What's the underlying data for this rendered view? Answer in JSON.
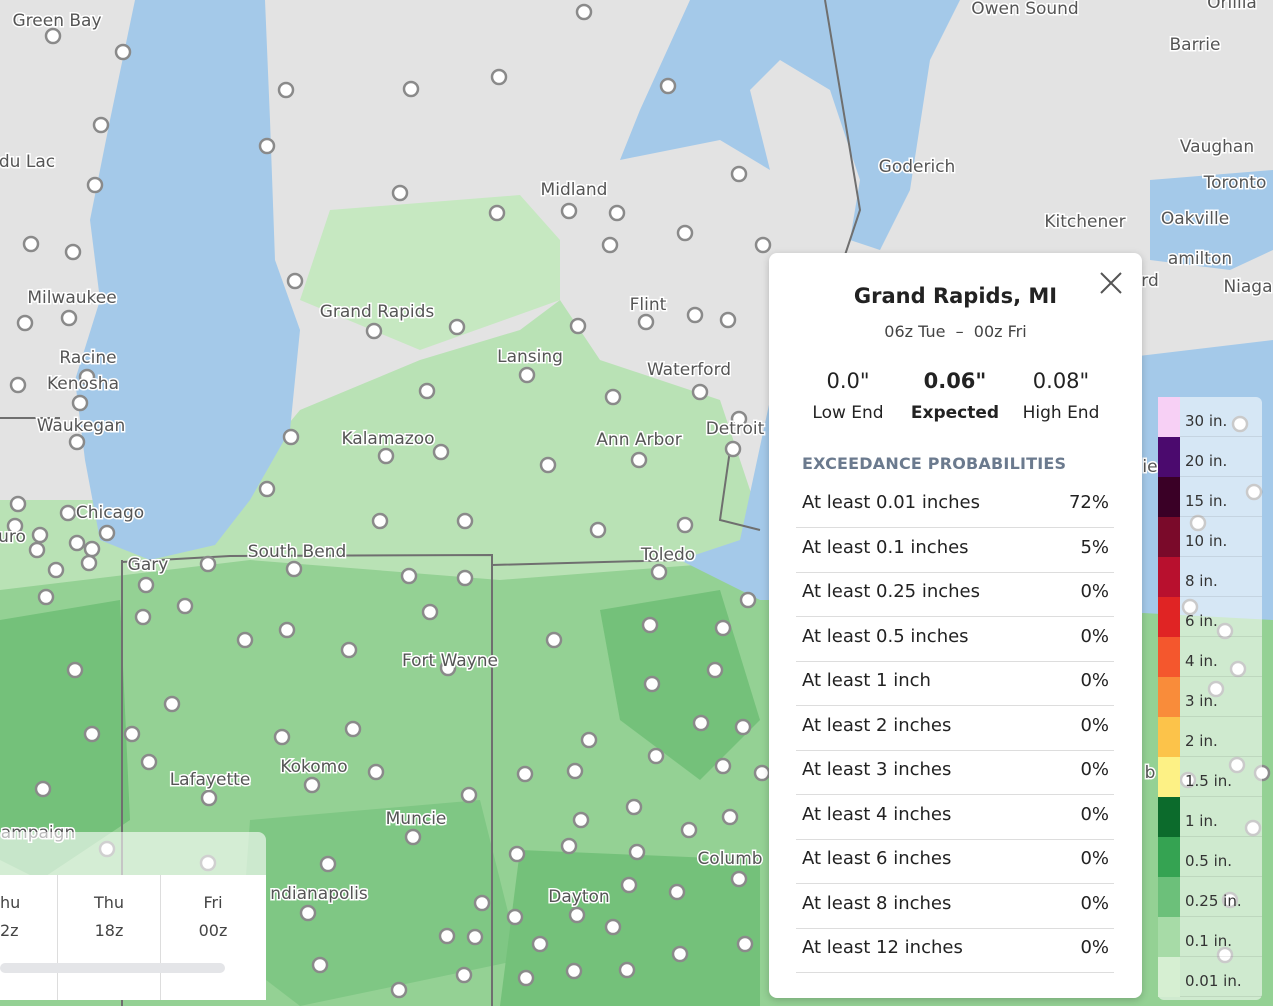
{
  "map": {
    "city_labels": [
      "Green Bay",
      "Owen Sound",
      "Orillia",
      "Barrie",
      "du Lac",
      "Vaughan",
      "Toronto",
      "Goderich",
      "Midland",
      "Kitchener",
      "Oakville",
      "amilton",
      "Niaga",
      "rd",
      "Milwaukee",
      "Grand Rapids",
      "Flint",
      "Lansing",
      "Racine",
      "Kenosha",
      "Waterford",
      "Waukegan",
      "Kalamazoo",
      "Ann Arbor",
      "Detroit",
      "Chicago",
      "uro",
      "South Bend",
      "Gary",
      "Toledo",
      "Fort Wayne",
      "Lafayette",
      "Kokomo",
      "Muncie",
      "ampaign",
      "Columb",
      "Dayton",
      "ndianapolis",
      "ie",
      "b"
    ]
  },
  "popup": {
    "title": "Grand Rapids, MI",
    "period": "06z Tue  –  00z Fri",
    "summary": [
      {
        "value": "0.0\"",
        "label": "Low End"
      },
      {
        "value": "0.06\"",
        "label": "Expected"
      },
      {
        "value": "0.08\"",
        "label": "High End"
      }
    ],
    "section_title": "EXCEEDANCE PROBABILITIES",
    "rows": [
      {
        "label": "At least 0.01 inches",
        "value": "72%"
      },
      {
        "label": "At least 0.1 inches",
        "value": "5%"
      },
      {
        "label": "At least 0.25 inches",
        "value": "0%"
      },
      {
        "label": "At least 0.5 inches",
        "value": "0%"
      },
      {
        "label": "At least 1 inch",
        "value": "0%"
      },
      {
        "label": "At least 2 inches",
        "value": "0%"
      },
      {
        "label": "At least 3 inches",
        "value": "0%"
      },
      {
        "label": "At least 4 inches",
        "value": "0%"
      },
      {
        "label": "At least 6 inches",
        "value": "0%"
      },
      {
        "label": "At least 8 inches",
        "value": "0%"
      },
      {
        "label": "At least 12 inches",
        "value": "0%"
      }
    ]
  },
  "legend": {
    "items": [
      {
        "label": "30 in.",
        "color": "#f7d0f5"
      },
      {
        "label": "20 in.",
        "color": "#4b0a6e"
      },
      {
        "label": "15 in.",
        "color": "#3a0026"
      },
      {
        "label": "10 in.",
        "color": "#7a0a2a"
      },
      {
        "label": "8 in.",
        "color": "#b8102e"
      },
      {
        "label": "6 in.",
        "color": "#e02424"
      },
      {
        "label": "4 in.",
        "color": "#f4572d"
      },
      {
        "label": "3 in.",
        "color": "#f98c3a"
      },
      {
        "label": "2 in.",
        "color": "#fcc34a"
      },
      {
        "label": "1.5 in.",
        "color": "#fdf185"
      },
      {
        "label": "1 in.",
        "color": "#0c6b2c"
      },
      {
        "label": "0.5 in.",
        "color": "#35a352"
      },
      {
        "label": "0.25 in.",
        "color": "#6cc07a"
      },
      {
        "label": "0.1 in.",
        "color": "#a7dba7"
      },
      {
        "label": "0.01 in.",
        "color": "#d6efd2"
      }
    ]
  },
  "timeline": {
    "columns": [
      {
        "day": "hu",
        "time": "2z"
      },
      {
        "day": "Thu",
        "time": "18z"
      },
      {
        "day": "Fri",
        "time": "00z"
      }
    ]
  }
}
